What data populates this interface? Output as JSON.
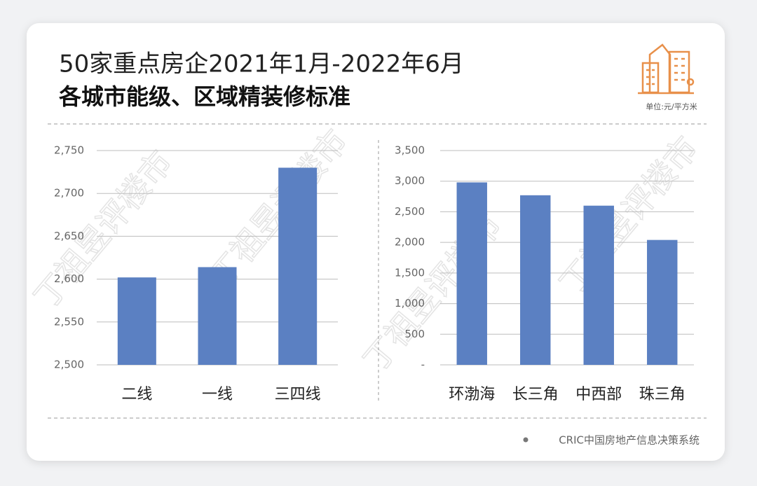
{
  "header": {
    "title_line1": "50家重点房企2021年1月-2022年6月",
    "title_line2": "各城市能级、区域精装修标准",
    "unit": "单位:元/平方米"
  },
  "watermark": "丁祖昱评楼市",
  "chart_data": [
    {
      "type": "bar",
      "categories": [
        "二线",
        "一线",
        "三四线"
      ],
      "values": [
        2602,
        2614,
        2730
      ],
      "color": "#5b80c2",
      "ylim": [
        2500,
        2750
      ],
      "yticks": [
        {
          "value": 2500,
          "label": "2,500"
        },
        {
          "value": 2550,
          "label": "2,550"
        },
        {
          "value": 2600,
          "label": "2,600"
        },
        {
          "value": 2650,
          "label": "2,650"
        },
        {
          "value": 2700,
          "label": "2,700"
        },
        {
          "value": 2750,
          "label": "2,750"
        }
      ],
      "grid": true
    },
    {
      "type": "bar",
      "categories": [
        "环渤海",
        "长三角",
        "中西部",
        "珠三角"
      ],
      "values": [
        2980,
        2770,
        2600,
        2040
      ],
      "color": "#5b80c2",
      "ylim": [
        0,
        3500
      ],
      "yticks": [
        {
          "value": 0,
          "label": "-"
        },
        {
          "value": 500,
          "label": "500"
        },
        {
          "value": 1000,
          "label": "1,000"
        },
        {
          "value": 1500,
          "label": "1,500"
        },
        {
          "value": 2000,
          "label": "2,000"
        },
        {
          "value": 2500,
          "label": "2,500"
        },
        {
          "value": 3000,
          "label": "3,000"
        },
        {
          "value": 3500,
          "label": "3,500"
        }
      ],
      "grid": true
    }
  ],
  "footer": {
    "source": "CRIC中国房地产信息决策系统"
  }
}
